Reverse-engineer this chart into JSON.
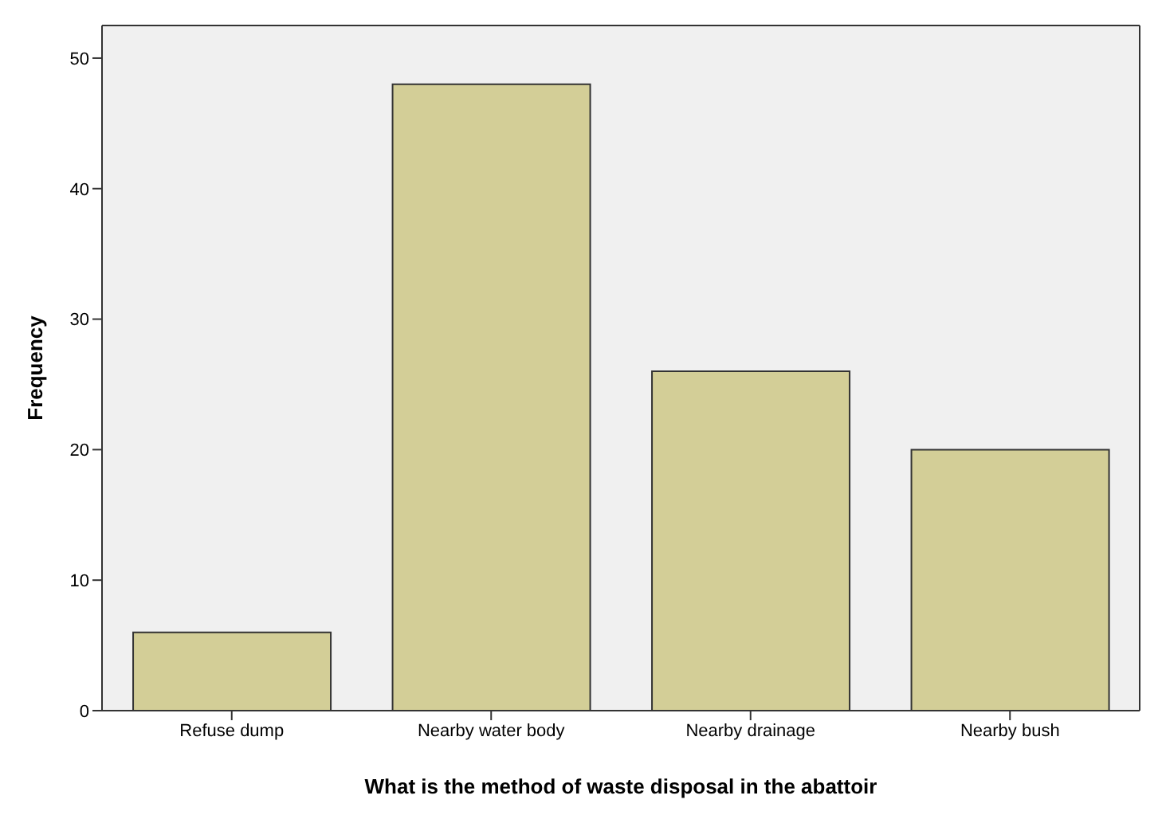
{
  "chart_data": {
    "type": "bar",
    "xlabel": "What is the method of waste disposal in the abattoir",
    "ylabel": "Frequency",
    "categories": [
      "Refuse dump",
      "Nearby water body",
      "Nearby drainage",
      "Nearby bush"
    ],
    "values": [
      6,
      48,
      26,
      20
    ],
    "color": "#d3ce97",
    "ylim": [
      0,
      52.5
    ],
    "yticks": [
      0,
      10,
      20,
      30,
      40,
      50
    ],
    "grid": false,
    "legend": false
  }
}
